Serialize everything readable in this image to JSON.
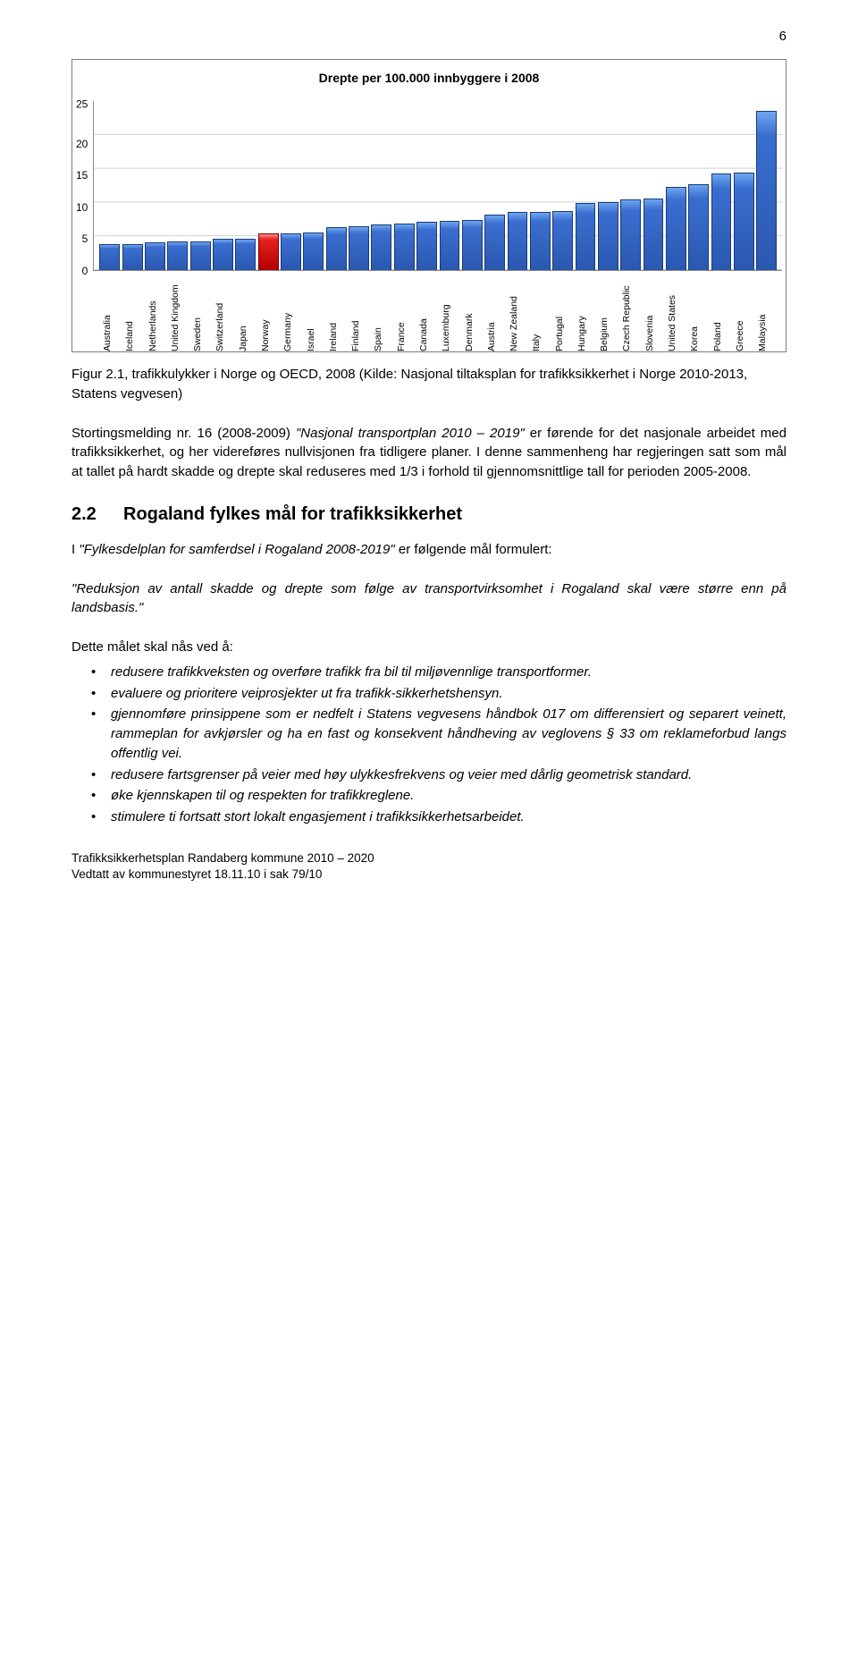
{
  "page_number": "6",
  "chart": {
    "type": "bar",
    "title": "Drepte per 100.000 innbyggere i 2008",
    "title_fontsize": 14,
    "ylim": [
      0,
      25
    ],
    "ytick_step": 5,
    "yticks": [
      "25",
      "20",
      "15",
      "10",
      "5",
      "0"
    ],
    "background_color": "#ffffff",
    "grid_color": "#cfcfcf",
    "border_color": "#7d7d7d",
    "bar_color": "#2a58b0",
    "bar_border": "#1a3a78",
    "highlight_color": "#b00000",
    "highlight_border": "#7a0000",
    "axis_label_fontsize": 12,
    "xlabel_fontsize": 10.5,
    "bars": [
      {
        "label": "Australia",
        "value": 3.8,
        "hl": false
      },
      {
        "label": "Iceland",
        "value": 3.8,
        "hl": false
      },
      {
        "label": "Netherlands",
        "value": 4.1,
        "hl": false
      },
      {
        "label": "United Kingdom",
        "value": 4.3,
        "hl": false
      },
      {
        "label": "Sweden",
        "value": 4.3,
        "hl": false
      },
      {
        "label": "Switzerland",
        "value": 4.7,
        "hl": false
      },
      {
        "label": "Japan",
        "value": 4.7,
        "hl": false
      },
      {
        "label": "Norway",
        "value": 5.4,
        "hl": true
      },
      {
        "label": "Germany",
        "value": 5.4,
        "hl": false
      },
      {
        "label": "Israel",
        "value": 5.6,
        "hl": false
      },
      {
        "label": "Ireland",
        "value": 6.3,
        "hl": false
      },
      {
        "label": "Finland",
        "value": 6.5,
        "hl": false
      },
      {
        "label": "Spain",
        "value": 6.8,
        "hl": false
      },
      {
        "label": "France",
        "value": 6.9,
        "hl": false
      },
      {
        "label": "Canada",
        "value": 7.2,
        "hl": false
      },
      {
        "label": "Luxemburg",
        "value": 7.3,
        "hl": false
      },
      {
        "label": "Denmark",
        "value": 7.4,
        "hl": false
      },
      {
        "label": "Austria",
        "value": 8.2,
        "hl": false
      },
      {
        "label": "New Zealand",
        "value": 8.6,
        "hl": false
      },
      {
        "label": "Italy",
        "value": 8.6,
        "hl": false
      },
      {
        "label": "Portugal",
        "value": 8.7,
        "hl": false
      },
      {
        "label": "Hungary",
        "value": 9.9,
        "hl": false
      },
      {
        "label": "Belgium",
        "value": 10.1,
        "hl": false
      },
      {
        "label": "Czech Republic",
        "value": 10.4,
        "hl": false
      },
      {
        "label": "Slovenia",
        "value": 10.6,
        "hl": false
      },
      {
        "label": "United States",
        "value": 12.3,
        "hl": false
      },
      {
        "label": "Korea",
        "value": 12.7,
        "hl": false
      },
      {
        "label": "Poland",
        "value": 14.3,
        "hl": false
      },
      {
        "label": "Greece",
        "value": 14.4,
        "hl": false
      },
      {
        "label": "Malaysia",
        "value": 23.5,
        "hl": false
      }
    ]
  },
  "caption": "Figur 2.1, trafikkulykker i Norge og OECD, 2008 (Kilde: Nasjonal tiltaksplan for trafikksikkerhet i Norge 2010-2013, Statens vegvesen)",
  "para1_prefix": "Stortingsmelding nr. 16 (2008-2009) ",
  "para1_italic": "\"Nasjonal transportplan 2010 – 2019\"",
  "para1_rest": " er førende for det nasjonale arbeidet med trafikksikkerhet, og her videreføres nullvisjonen fra tidligere planer. I denne sammenheng har regjeringen satt som mål at tallet på hardt skadde og drepte skal reduseres med 1/3 i forhold til gjennomsnittlige tall for perioden 2005-2008.",
  "section": {
    "num": "2.2",
    "title": "Rogaland fylkes mål for trafikksikkerhet"
  },
  "para2_prefix": "I ",
  "para2_italic": "\"Fylkesdelplan for samferdsel i Rogaland 2008-2019\"",
  "para2_rest": " er følgende mål formulert:",
  "quote": "\"Reduksjon av antall skadde og drepte som følge av transportvirksomhet i Rogaland skal være større enn på landsbasis.\"",
  "lead": "Dette målet skal nås ved å:",
  "bullets": [
    "redusere trafikkveksten og overføre trafikk fra bil til miljøvennlige transportformer.",
    "evaluere og prioritere veiprosjekter ut fra trafikk-sikkerhetshensyn.",
    "gjennomføre prinsippene som er nedfelt i Statens vegvesens håndbok 017 om differensiert og separert veinett, rammeplan for avkjørsler og ha en fast og konsekvent håndheving av veglovens § 33 om reklameforbud langs offentlig vei.",
    "redusere fartsgrenser på veier med høy ulykkesfrekvens og veier med dårlig geometrisk standard.",
    "øke kjennskapen til og respekten for trafikkreglene.",
    "stimulere ti fortsatt stort lokalt engasjement i trafikksikkerhetsarbeidet."
  ],
  "footer": {
    "line1": "Trafikksikkerhetsplan Randaberg kommune 2010 – 2020",
    "line2": "Vedtatt av kommunestyret 18.11.10 i sak 79/10"
  }
}
